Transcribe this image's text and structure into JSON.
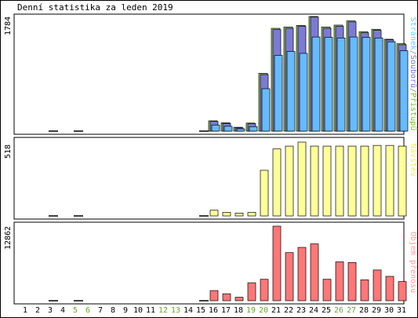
{
  "title": "Denní statistika za leden 2019",
  "chart_data": [
    {
      "type": "bar",
      "title": "Denní statistika za leden 2019",
      "categories": [
        "1",
        "2",
        "3",
        "4",
        "5",
        "6",
        "7",
        "8",
        "9",
        "10",
        "11",
        "12",
        "13",
        "14",
        "15",
        "16",
        "17",
        "18",
        "19",
        "20",
        "21",
        "22",
        "23",
        "24",
        "25",
        "26",
        "27",
        "28",
        "29",
        "30",
        "31"
      ],
      "weekend_days": [
        "5",
        "6",
        "12",
        "13",
        "19",
        "20",
        "26",
        "27"
      ],
      "ymax_label": "1784",
      "ymax": 1784,
      "legend_parts": [
        {
          "text": "Stránek",
          "color": "#66ccff"
        },
        {
          "text": "/",
          "color": "#888888"
        },
        {
          "text": "Souborů",
          "color": "#7777dd"
        },
        {
          "text": "/",
          "color": "#888888"
        },
        {
          "text": "Přístupů",
          "color": "#77bb33"
        }
      ],
      "series": [
        {
          "name": "Přístupů",
          "color": "#99cc66",
          "values": [
            0,
            0,
            10,
            0,
            10,
            0,
            0,
            0,
            0,
            0,
            0,
            0,
            0,
            0,
            10,
            160,
            130,
            60,
            125,
            900,
            1600,
            1620,
            1645,
            1784,
            1620,
            1650,
            1715,
            1545,
            1585,
            1430,
            1360
          ]
        },
        {
          "name": "Souborů",
          "color": "#7b7bd6",
          "values": [
            0,
            0,
            0,
            0,
            0,
            0,
            0,
            0,
            0,
            0,
            0,
            0,
            0,
            0,
            0,
            150,
            120,
            50,
            115,
            880,
            1580,
            1600,
            1630,
            1775,
            1600,
            1630,
            1700,
            1530,
            1570,
            1420,
            1345
          ]
        },
        {
          "name": "Stránek",
          "color": "#66bbff",
          "values": [
            0,
            0,
            0,
            0,
            0,
            0,
            0,
            0,
            0,
            0,
            0,
            0,
            0,
            0,
            0,
            95,
            75,
            35,
            70,
            660,
            1180,
            1240,
            1210,
            1465,
            1460,
            1450,
            1465,
            1460,
            1450,
            1390,
            1250
          ]
        }
      ]
    },
    {
      "type": "bar",
      "ymax_label": "518",
      "ymax": 518,
      "legend": "Návštěv",
      "legend_color": "#eeee55",
      "series": [
        {
          "name": "Návštěv",
          "color": "#ffff99",
          "values": [
            0,
            0,
            5,
            0,
            5,
            0,
            0,
            0,
            0,
            0,
            0,
            0,
            0,
            0,
            5,
            40,
            25,
            20,
            25,
            320,
            470,
            490,
            518,
            490,
            490,
            490,
            490,
            490,
            495,
            495,
            490
          ]
        }
      ]
    },
    {
      "type": "bar",
      "ymax_label": "12862",
      "ymax": 12862,
      "legend": "Objem přenosu",
      "legend_color": "#ff9999",
      "series": [
        {
          "name": "Objem přenosu",
          "color": "#ff7777",
          "values": [
            0,
            0,
            100,
            0,
            100,
            0,
            0,
            0,
            0,
            0,
            0,
            0,
            0,
            0,
            100,
            1750,
            1200,
            600,
            3100,
            3700,
            12862,
            8300,
            9200,
            9800,
            3700,
            6700,
            6600,
            3600,
            5300,
            4200,
            3300
          ]
        }
      ]
    }
  ]
}
